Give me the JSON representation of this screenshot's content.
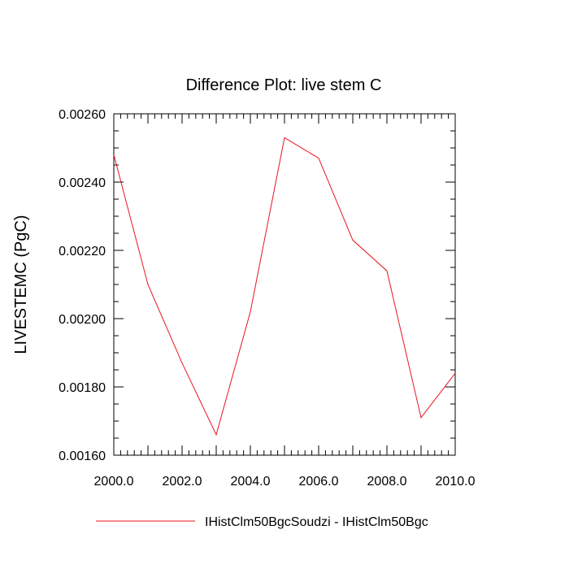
{
  "chart_data": {
    "type": "line",
    "title": "Difference Plot: live stem C",
    "xlabel": "",
    "ylabel": "LIVESTEMC  (PgC)",
    "xlim": [
      2000.0,
      2010.0
    ],
    "ylim": [
      0.0016,
      0.0026
    ],
    "x_ticks": [
      "2000.0",
      "2002.0",
      "2004.0",
      "2006.0",
      "2008.0",
      "2010.0"
    ],
    "y_ticks": [
      "0.00160",
      "0.00180",
      "0.00200",
      "0.00220",
      "0.00240",
      "0.00260"
    ],
    "grid": false,
    "legend_position": "bottom",
    "x": [
      2000,
      2001,
      2002,
      2003,
      2004,
      2005,
      2006,
      2007,
      2008,
      2009,
      2010
    ],
    "series": [
      {
        "name": "IHistClm50BgcSoudzi - IHistClm50Bgc",
        "color": "#e8141e",
        "values": [
          0.00248,
          0.0021,
          0.00187,
          0.00166,
          0.00202,
          0.00253,
          0.00247,
          0.00223,
          0.00214,
          0.00171,
          0.00184
        ]
      }
    ]
  }
}
